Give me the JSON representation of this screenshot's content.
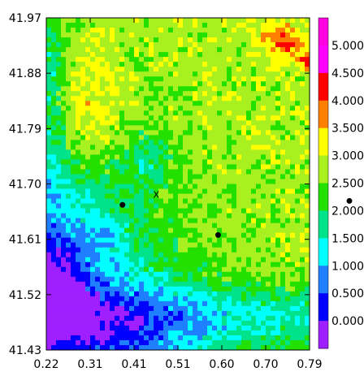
{
  "chart_data": {
    "type": "heatmap",
    "x_ticks": [
      "0.22",
      "0.31",
      "0.41",
      "0.51",
      "0.60",
      "0.70",
      "0.79"
    ],
    "y_ticks": [
      "41.97",
      "41.88",
      "41.79",
      "41.70",
      "41.61",
      "41.52",
      "41.43"
    ],
    "xlim": [
      0.22,
      0.79
    ],
    "ylim": [
      41.43,
      41.97
    ],
    "colorbar": {
      "ticks": [
        "0.000",
        "0.500",
        "1.000",
        "1.500",
        "2.000",
        "2.500",
        "3.000",
        "3.500",
        "4.000",
        "4.500",
        "5.000"
      ],
      "bands": [
        {
          "min": -0.5,
          "max": 0.0,
          "color": "#9f1fff"
        },
        {
          "min": 0.0,
          "max": 0.5,
          "color": "#0000ff"
        },
        {
          "min": 0.5,
          "max": 1.0,
          "color": "#1e7fff"
        },
        {
          "min": 1.0,
          "max": 1.5,
          "color": "#00ffff"
        },
        {
          "min": 1.5,
          "max": 2.0,
          "color": "#00e38b"
        },
        {
          "min": 2.0,
          "max": 2.5,
          "color": "#22e000"
        },
        {
          "min": 2.5,
          "max": 3.0,
          "color": "#a8f020"
        },
        {
          "min": 3.0,
          "max": 3.5,
          "color": "#ffff00"
        },
        {
          "min": 3.5,
          "max": 4.0,
          "color": "#ff7f00"
        },
        {
          "min": 4.0,
          "max": 4.5,
          "color": "#ff0000"
        },
        {
          "min": 4.5,
          "max": 5.0,
          "color": "#ff00ff"
        },
        {
          "min": 5.0,
          "max": 5.5,
          "color": "#ff00e0"
        }
      ]
    },
    "field_description": "gridded 2D field, values 0-5",
    "markers": [
      {
        "label": "",
        "x": 0.385,
        "y": 41.666,
        "symbol": "dot"
      },
      {
        "label": "",
        "x": 0.592,
        "y": 41.617,
        "symbol": "dot"
      },
      {
        "label": "X",
        "x": 0.458,
        "y": 41.683,
        "symbol": "text"
      }
    ],
    "offscreen_marker": {
      "symbol": "dot"
    }
  }
}
